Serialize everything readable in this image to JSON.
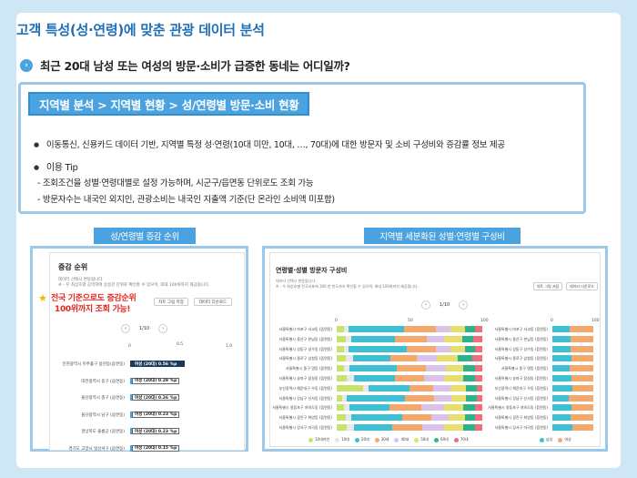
{
  "page": {
    "title": "고객 특성(성·연령)에 맞춘 관광 데이터 분석",
    "question": "최근 20대 남성 또는 여성의 방문·소비가 급증한 동네는 어디일까?",
    "question_icon": "chevron-right-icon"
  },
  "info": {
    "breadcrumb": "지역별 분석 > 지역별 현황 > 성/연령별 방문·소비 현황",
    "line1": "이동통신, 신용카드 데이터 기반, 지역별 특정 성·연령(10대 미만, 10대, …, 70대)에 대한 방문자 및 소비 구성비와 증감률 정보 제공",
    "tip_title": "이용 Tip",
    "tip1": "- 조회조건을 성별·연령대별로 설정 가능하며, 시군구/읍면동 단위로도 조회 가능",
    "tip2": "- 방문자수는 내국인 외지인, 관광소비는 내국인 지출액 기준(단 온라인 소비액 미포함)"
  },
  "left_panel": {
    "label": "성/연령별 증감 순위",
    "shot_title": "증감 순위",
    "desc1": "데이터 선택시 변동됩니다.",
    "desc2": "※ - 우 최상호별 공역학에 상승한 단위로 확인할 수 있으며, 최대 100위까지 제공됩니다.",
    "btn_chart": "차트 그림 저장",
    "btn_data": "데이터 다운로드",
    "pager": "1/10",
    "ticks": [
      "0",
      "0.5",
      "1.0"
    ],
    "callout_line1": "전국 기준으로도 증감순위",
    "callout_line2": "100위까지 조회 가능!",
    "rows": [
      {
        "name": "인천광역시 미추홀구 용현동(읍면동)",
        "value": "여성 (20대) 0.56 %p",
        "v": 0.56
      },
      {
        "name": "대전광역시 동구 (읍면동)",
        "value": "여성 (20대) 0.29 %p",
        "v": 0.29
      },
      {
        "name": "울산광역시 중구 (읍면동)",
        "value": "여성 (20대) 0.26 %p",
        "v": 0.26
      },
      {
        "name": "울산광역시 남구 (읍면동)",
        "value": "여성 (20대) 0.23 %p",
        "v": 0.23
      },
      {
        "name": "경상북도 울릉군 (읍면동)",
        "value": "여성 (20대) 0.23 %p",
        "v": 0.23
      },
      {
        "name": "경기도 고양시 일산서구 (읍면동)",
        "value": "여성 (20대) 0.15 %p",
        "v": 0.15
      }
    ]
  },
  "right_panel": {
    "label": "지역별 세분화된 성별·연령별 구성비",
    "shot_title": "연령별·성별 방문자 구성비",
    "desc1": "데이터 선택시 변동됩니다.",
    "desc2": "※ - 우 최상호별 전국지표에 300 번 한도까지 확인할 수 있으며, 최대 100위까지 제공됩니다.",
    "btn_chart": "차트 그림 저장",
    "btn_data": "데이터 다운로드",
    "pager": "1/10",
    "left_ticks": [
      "0",
      "50",
      "100"
    ],
    "right_ticks": [
      "0",
      "100"
    ],
    "age_labels": [
      "10대미만",
      "10대",
      "20대",
      "30대",
      "40대",
      "50대",
      "60대",
      "70대"
    ],
    "age_colors": [
      "#c7e36a",
      "#e8e8e8",
      "#3dbfd4",
      "#f5a86b",
      "#d9c3ea",
      "#e6df6e",
      "#2db38a",
      "#f06d7a"
    ],
    "gender_labels": [
      "남성",
      "여성"
    ],
    "gender_colors": [
      "#3dbfd4",
      "#f5a86b"
    ],
    "rows": [
      {
        "name": "서울특별시 마포구 서교동 (읍면동)",
        "ages": [
          5,
          3,
          38,
          22,
          10,
          10,
          7,
          5
        ],
        "gender": [
          42,
          58
        ]
      },
      {
        "name": "서울특별시 용산구 한남동 (읍면동)",
        "ages": [
          6,
          4,
          30,
          22,
          12,
          12,
          8,
          6
        ],
        "gender": [
          45,
          55
        ]
      },
      {
        "name": "서울특별시 성동구 성수동 (읍면동)",
        "ages": [
          5,
          3,
          40,
          20,
          10,
          10,
          7,
          5
        ],
        "gender": [
          44,
          56
        ]
      },
      {
        "name": "서울특별시 종로구 삼청동 (읍면동)",
        "ages": [
          6,
          5,
          26,
          18,
          14,
          14,
          10,
          7
        ],
        "gender": [
          46,
          54
        ]
      },
      {
        "name": "서울특별시 중구 명동 (읍면동)",
        "ages": [
          5,
          4,
          32,
          20,
          14,
          12,
          8,
          5
        ],
        "gender": [
          43,
          57
        ]
      },
      {
        "name": "서울특별시 송파구 잠실동 (읍면동)",
        "ages": [
          7,
          5,
          28,
          20,
          14,
          13,
          8,
          5
        ],
        "gender": [
          47,
          53
        ]
      },
      {
        "name": "부산광역시 해운대구 우동 (읍면동)",
        "ages": [
          18,
          4,
          28,
          16,
          12,
          11,
          7,
          4
        ],
        "gender": [
          48,
          52
        ]
      },
      {
        "name": "서울특별시 강남구 신사동 (읍면동)",
        "ages": [
          4,
          3,
          40,
          20,
          12,
          10,
          7,
          4
        ],
        "gender": [
          40,
          60
        ]
      },
      {
        "name": "서울특별시 영등포구 여의도동 (읍면동)",
        "ages": [
          5,
          4,
          27,
          22,
          16,
          13,
          8,
          5
        ],
        "gender": [
          46,
          54
        ]
      },
      {
        "name": "서울특별시 광진구 화양동 (읍면동)",
        "ages": [
          6,
          4,
          35,
          20,
          12,
          11,
          7,
          5
        ],
        "gender": [
          45,
          55
        ]
      },
      {
        "name": "서울특별시 강서구 마곡동 (읍면동)",
        "ages": [
          7,
          5,
          26,
          21,
          15,
          13,
          8,
          5
        ],
        "gender": [
          48,
          52
        ]
      }
    ]
  }
}
